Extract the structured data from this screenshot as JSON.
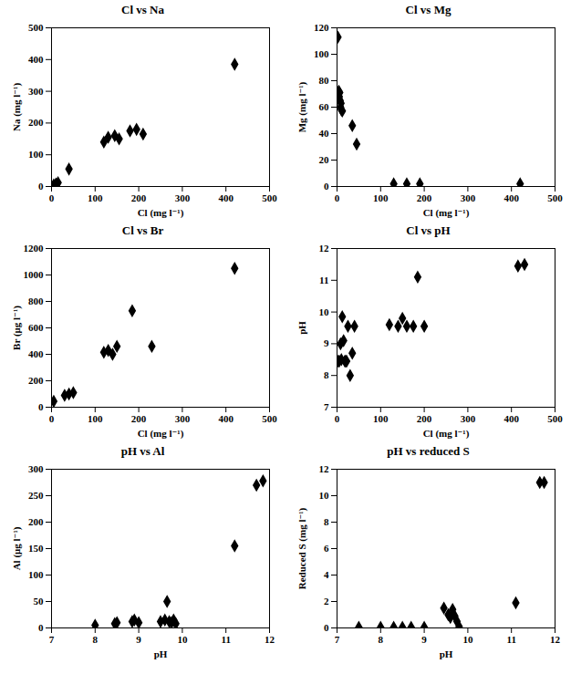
{
  "chart_data": [
    {
      "type": "scatter",
      "title": "Cl vs Na",
      "xlabel": "Cl (mg l⁻¹)",
      "ylabel": "Na (mg l⁻¹)",
      "xlim": [
        0,
        500
      ],
      "ylim": [
        0,
        500
      ],
      "xticks": [
        0,
        100,
        200,
        300,
        400,
        500
      ],
      "yticks": [
        0,
        100,
        200,
        300,
        400,
        500
      ],
      "x": [
        5,
        10,
        15,
        40,
        120,
        130,
        145,
        155,
        180,
        195,
        210,
        420
      ],
      "y": [
        5,
        8,
        12,
        55,
        140,
        155,
        160,
        150,
        175,
        180,
        165,
        385
      ],
      "marker": "diamond",
      "color": "black",
      "grid": false
    },
    {
      "type": "scatter",
      "title": "Cl vs Mg",
      "xlabel": "Cl (mg l⁻¹)",
      "ylabel": "Mg (mg l⁻¹)",
      "xlim": [
        0,
        500
      ],
      "ylim": [
        0,
        120
      ],
      "xticks": [
        0,
        100,
        200,
        300,
        400,
        500
      ],
      "yticks": [
        0,
        20,
        40,
        60,
        80,
        100,
        120
      ],
      "x": [
        2,
        3,
        4,
        5,
        6,
        7,
        8,
        9,
        10,
        12,
        35,
        45,
        130,
        160,
        190,
        420
      ],
      "y": [
        113,
        70,
        72,
        68,
        71,
        65,
        60,
        63,
        58,
        57,
        46,
        32,
        2,
        2,
        2,
        2
      ],
      "marker": "diamond",
      "color": "black",
      "grid": false
    },
    {
      "type": "scatter",
      "title": "Cl vs Br",
      "xlabel": "Cl (mg l⁻¹)",
      "ylabel": "Br (μg l⁻¹)",
      "xlim": [
        0,
        500
      ],
      "ylim": [
        0,
        1200
      ],
      "xticks": [
        0,
        100,
        200,
        300,
        400,
        500
      ],
      "yticks": [
        0,
        200,
        400,
        600,
        800,
        1000,
        1200
      ],
      "x": [
        5,
        30,
        40,
        50,
        120,
        130,
        140,
        150,
        185,
        230,
        420
      ],
      "y": [
        45,
        90,
        100,
        110,
        415,
        430,
        400,
        460,
        730,
        460,
        1050
      ],
      "marker": "diamond",
      "color": "black",
      "grid": false
    },
    {
      "type": "scatter",
      "title": "Cl vs pH",
      "xlabel": "Cl (mg l⁻¹)",
      "ylabel": "pH",
      "xlim": [
        0,
        500
      ],
      "ylim": [
        7,
        12
      ],
      "xticks": [
        0,
        100,
        200,
        300,
        400,
        500
      ],
      "yticks": [
        7,
        8,
        9,
        10,
        11,
        12
      ],
      "x": [
        3,
        5,
        8,
        10,
        12,
        15,
        18,
        20,
        22,
        25,
        30,
        35,
        40,
        120,
        140,
        150,
        160,
        175,
        185,
        200,
        415,
        430
      ],
      "y": [
        8.45,
        8.45,
        9.0,
        8.5,
        9.85,
        9.1,
        8.45,
        8.45,
        8.45,
        9.55,
        8.0,
        8.7,
        9.55,
        9.6,
        9.55,
        9.8,
        9.55,
        9.55,
        11.1,
        9.55,
        11.45,
        11.5
      ],
      "marker": "diamond",
      "color": "black",
      "grid": false
    },
    {
      "type": "scatter",
      "title": "pH vs Al",
      "xlabel": "pH",
      "ylabel": "Al (μg l⁻¹)",
      "xlim": [
        7,
        12
      ],
      "ylim": [
        0,
        300
      ],
      "xticks": [
        7,
        8,
        9,
        10,
        11,
        12
      ],
      "yticks": [
        0,
        50,
        100,
        150,
        200,
        250,
        300
      ],
      "x": [
        8.0,
        8.45,
        8.5,
        8.85,
        8.9,
        9.0,
        9.5,
        9.6,
        9.65,
        9.7,
        9.75,
        9.8,
        9.85,
        11.2,
        11.7,
        11.85
      ],
      "y": [
        5,
        8,
        10,
        12,
        15,
        10,
        12,
        15,
        50,
        12,
        10,
        15,
        8,
        155,
        270,
        278
      ],
      "marker": "diamond",
      "color": "black",
      "grid": false
    },
    {
      "type": "scatter",
      "title": "pH vs reduced S",
      "xlabel": "pH",
      "ylabel": "Reduced S (mg l⁻¹)",
      "xlim": [
        7,
        12
      ],
      "ylim": [
        0,
        12
      ],
      "xticks": [
        7,
        8,
        9,
        10,
        11,
        12
      ],
      "yticks": [
        0,
        2,
        4,
        6,
        8,
        10,
        12
      ],
      "x": [
        7.5,
        8.0,
        8.3,
        8.5,
        8.7,
        9.0,
        9.45,
        9.55,
        9.6,
        9.65,
        9.7,
        9.75,
        9.8,
        11.1,
        11.65,
        11.75
      ],
      "y": [
        0.05,
        0.05,
        0.05,
        0.05,
        0.05,
        0.05,
        1.5,
        1.0,
        0.8,
        1.4,
        0.9,
        0.5,
        0.1,
        1.9,
        11.0,
        11.0
      ],
      "marker": "diamond",
      "color": "black",
      "grid": false
    }
  ]
}
